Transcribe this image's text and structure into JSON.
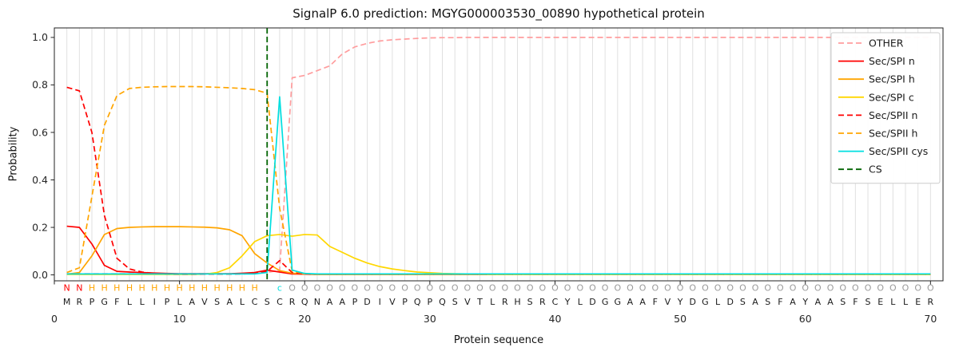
{
  "figure": {
    "title": "SignalP 6.0 prediction: MGYG000003530_00890 hypothetical protein",
    "xlabel": "Protein sequence",
    "ylabel": "Probability"
  },
  "chart_data": {
    "type": "line",
    "title": "SignalP 6.0 prediction: MGYG000003530_00890 hypothetical protein",
    "xlabel": "Protein sequence",
    "ylabel": "Probability",
    "xlim": [
      0,
      71
    ],
    "ylim": [
      -0.025,
      1.04
    ],
    "xticks": [
      0,
      10,
      20,
      30,
      40,
      50,
      60,
      70
    ],
    "yticks": [
      0,
      0.2,
      0.4,
      0.6,
      0.8,
      1.0
    ],
    "grid": "vertical-line-per-residue",
    "legend_position": "upper-right",
    "grid_color": "#e0e0e0",
    "frame_color": "#222222",
    "sequence": "MRPGFLLIPLAVSALCSCRQNAAPDIVPQPQSVTLRHSRCYLDGGAAFVYDGLDSASFAYAASFSELLER",
    "sequence_color": "#1a1a1a",
    "annotation": "NNHHHHHHHHHHHHHH cOOOOOOOOOOOOOOOOOOOOOOOOOOOOOOOOOOOOOOOOOOOOOOOOOOOO",
    "annotation_colors": {
      "N": "#ff0000",
      "H": "#ffa500",
      "c": "#00dfe0",
      "O": "#9a9a9a"
    },
    "x_start": 1,
    "series": [
      {
        "name": "OTHER",
        "color": "#ff9d9e",
        "style": "dashed",
        "values": [
          0.005,
          0.005,
          0.005,
          0.005,
          0.005,
          0.005,
          0.005,
          0.005,
          0.005,
          0.005,
          0.005,
          0.005,
          0.005,
          0.005,
          0.005,
          0.006,
          0.01,
          0.02,
          0.83,
          0.84,
          0.86,
          0.88,
          0.93,
          0.96,
          0.975,
          0.985,
          0.99,
          0.993,
          0.996,
          0.998,
          0.999,
          0.999,
          1.0,
          1.0,
          1.0,
          1.0,
          1.0,
          1.0,
          1.0,
          1.0,
          1.0,
          1.0,
          1.0,
          1.0,
          1.0,
          1.0,
          1.0,
          1.0,
          1.0,
          1.0,
          1.0,
          1.0,
          1.0,
          1.0,
          1.0,
          1.0,
          1.0,
          1.0,
          1.0,
          1.0,
          1.0,
          1.0,
          1.0,
          1.0,
          1.0,
          1.0,
          1.0,
          1.0,
          1.0,
          1.0
        ]
      },
      {
        "name": "Sec/SPI n",
        "color": "#ff0000",
        "style": "solid",
        "values": [
          0.205,
          0.2,
          0.13,
          0.04,
          0.015,
          0.012,
          0.01,
          0.008,
          0.006,
          0.005,
          0.005,
          0.005,
          0.005,
          0.005,
          0.007,
          0.01,
          0.02,
          0.012,
          0.004,
          0.003,
          0.002,
          0.002,
          0.002,
          0.002,
          0.002,
          0.002,
          0.002,
          0.002,
          0.002,
          0.002,
          0.002,
          0.002,
          0.002,
          0.002,
          0.002,
          0.002,
          0.002,
          0.002,
          0.002,
          0.002,
          0.002,
          0.002,
          0.002,
          0.002,
          0.002,
          0.002,
          0.002,
          0.002,
          0.002,
          0.002,
          0.002,
          0.002,
          0.002,
          0.002,
          0.002,
          0.002,
          0.002,
          0.002,
          0.002,
          0.002,
          0.002,
          0.002,
          0.002,
          0.002,
          0.002,
          0.002,
          0.002,
          0.002,
          0.002,
          0.002
        ]
      },
      {
        "name": "Sec/SPI h",
        "color": "#ffa500",
        "style": "solid",
        "values": [
          0.003,
          0.01,
          0.08,
          0.17,
          0.195,
          0.2,
          0.202,
          0.203,
          0.203,
          0.203,
          0.202,
          0.201,
          0.198,
          0.19,
          0.165,
          0.09,
          0.05,
          0.018,
          0.007,
          0.004,
          0.002,
          0.002,
          0.002,
          0.002,
          0.002,
          0.002,
          0.002,
          0.002,
          0.002,
          0.002,
          0.002,
          0.002,
          0.002,
          0.002,
          0.002,
          0.002,
          0.002,
          0.002,
          0.002,
          0.002,
          0.002,
          0.002,
          0.002,
          0.002,
          0.002,
          0.002,
          0.002,
          0.002,
          0.002,
          0.002,
          0.002,
          0.002,
          0.002,
          0.002,
          0.002,
          0.002,
          0.002,
          0.002,
          0.002,
          0.002,
          0.002,
          0.002,
          0.002,
          0.002,
          0.002,
          0.002,
          0.002,
          0.002,
          0.002,
          0.002
        ]
      },
      {
        "name": "Sec/SPI c",
        "color": "#ffd700",
        "style": "solid",
        "values": [
          0.002,
          0.002,
          0.002,
          0.002,
          0.002,
          0.002,
          0.002,
          0.002,
          0.002,
          0.002,
          0.002,
          0.003,
          0.01,
          0.03,
          0.08,
          0.14,
          0.165,
          0.17,
          0.163,
          0.17,
          0.168,
          0.12,
          0.095,
          0.07,
          0.05,
          0.035,
          0.025,
          0.018,
          0.012,
          0.009,
          0.006,
          0.005,
          0.004,
          0.003,
          0.002,
          0.002,
          0.002,
          0.002,
          0.002,
          0.002,
          0.002,
          0.002,
          0.002,
          0.002,
          0.002,
          0.002,
          0.002,
          0.002,
          0.002,
          0.002,
          0.002,
          0.002,
          0.002,
          0.002,
          0.002,
          0.002,
          0.002,
          0.002,
          0.002,
          0.002,
          0.002,
          0.002,
          0.002,
          0.002,
          0.002,
          0.002,
          0.002,
          0.002,
          0.002,
          0.002
        ]
      },
      {
        "name": "Sec/SPII n",
        "color": "#ff0000",
        "style": "dashed",
        "values": [
          0.79,
          0.775,
          0.6,
          0.25,
          0.07,
          0.025,
          0.012,
          0.006,
          0.004,
          0.003,
          0.003,
          0.003,
          0.003,
          0.003,
          0.004,
          0.006,
          0.015,
          0.06,
          0.01,
          0.004,
          0.003,
          0.003,
          0.003,
          0.003,
          0.003,
          0.003,
          0.003,
          0.003,
          0.003,
          0.003,
          0.003,
          0.003,
          0.003,
          0.003,
          0.003,
          0.003,
          0.003,
          0.003,
          0.003,
          0.003,
          0.003,
          0.003,
          0.003,
          0.003,
          0.003,
          0.003,
          0.003,
          0.003,
          0.003,
          0.003,
          0.003,
          0.003,
          0.003,
          0.003,
          0.003,
          0.003,
          0.003,
          0.003,
          0.003,
          0.003,
          0.003,
          0.003,
          0.003,
          0.003,
          0.003,
          0.003,
          0.003,
          0.003,
          0.003,
          0.003
        ]
      },
      {
        "name": "Sec/SPII h",
        "color": "#ffa500",
        "style": "dashed",
        "values": [
          0.01,
          0.03,
          0.33,
          0.63,
          0.755,
          0.785,
          0.79,
          0.792,
          0.793,
          0.793,
          0.793,
          0.792,
          0.79,
          0.788,
          0.785,
          0.78,
          0.765,
          0.28,
          0.015,
          0.006,
          0.003,
          0.003,
          0.003,
          0.003,
          0.003,
          0.003,
          0.003,
          0.003,
          0.003,
          0.003,
          0.003,
          0.003,
          0.003,
          0.003,
          0.003,
          0.003,
          0.003,
          0.003,
          0.003,
          0.003,
          0.003,
          0.003,
          0.003,
          0.003,
          0.003,
          0.003,
          0.003,
          0.003,
          0.003,
          0.003,
          0.003,
          0.003,
          0.003,
          0.003,
          0.003,
          0.003,
          0.003,
          0.003,
          0.003,
          0.003,
          0.003,
          0.003,
          0.003,
          0.003,
          0.003,
          0.003,
          0.003,
          0.003,
          0.003,
          0.003
        ]
      },
      {
        "name": "Sec/SPII cys",
        "color": "#00dfe0",
        "style": "solid",
        "values": [
          0.004,
          0.004,
          0.004,
          0.004,
          0.004,
          0.004,
          0.004,
          0.004,
          0.004,
          0.004,
          0.004,
          0.004,
          0.004,
          0.004,
          0.004,
          0.004,
          0.01,
          0.75,
          0.02,
          0.006,
          0.004,
          0.004,
          0.004,
          0.004,
          0.004,
          0.004,
          0.004,
          0.004,
          0.004,
          0.004,
          0.004,
          0.004,
          0.004,
          0.004,
          0.004,
          0.004,
          0.004,
          0.004,
          0.004,
          0.004,
          0.004,
          0.004,
          0.004,
          0.004,
          0.004,
          0.004,
          0.004,
          0.004,
          0.004,
          0.004,
          0.004,
          0.004,
          0.004,
          0.004,
          0.004,
          0.004,
          0.004,
          0.004,
          0.004,
          0.004,
          0.004,
          0.004,
          0.004,
          0.004,
          0.004,
          0.004,
          0.004,
          0.004,
          0.004,
          0.004
        ]
      }
    ],
    "cs_marker": {
      "name": "CS",
      "color": "#006400",
      "style": "dashed",
      "position": 17
    }
  }
}
